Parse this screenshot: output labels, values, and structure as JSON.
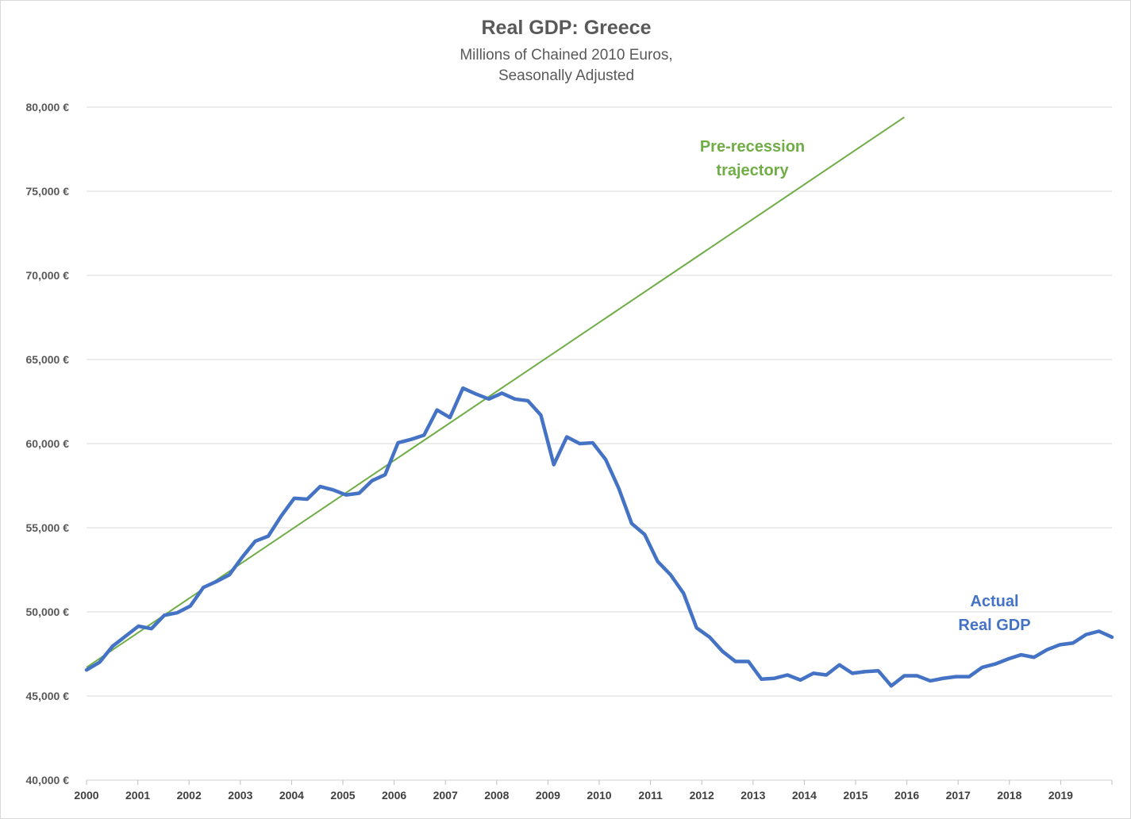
{
  "chart_data": {
    "type": "line",
    "title": "Real GDP: Greece",
    "subtitle": [
      "Millions of Chained 2010 Euros,",
      "Seasonally Adjusted"
    ],
    "ylim": [
      40000,
      80000
    ],
    "yticks": [
      40000,
      45000,
      50000,
      55000,
      60000,
      65000,
      70000,
      75000,
      80000
    ],
    "ytick_labels": [
      "40,000 €",
      "45,000 €",
      "50,000 €",
      "55,000 €",
      "60,000 €",
      "65,000 €",
      "70,000 €",
      "75,000 €",
      "80,000 €"
    ],
    "xticks": [
      "2000",
      "2001",
      "2002",
      "2003",
      "2004",
      "2005",
      "2006",
      "2007",
      "2008",
      "2009",
      "2010",
      "2011",
      "2012",
      "2013",
      "2014",
      "2015",
      "2016",
      "2017",
      "2018",
      "2019"
    ],
    "grid": true,
    "legend": "none",
    "series": [
      {
        "color": "#4472c4",
        "frequency": "quarterly",
        "start": "2000-Q1",
        "values": [
          46550,
          47000,
          47950,
          48550,
          49150,
          49000,
          49800,
          49950,
          50350,
          51450,
          51800,
          52200,
          53250,
          54200,
          54500,
          55700,
          56750,
          56700,
          57450,
          57250,
          56950,
          57050,
          57800,
          58150,
          60050,
          60250,
          60500,
          62000,
          61550,
          63300,
          62950,
          62650,
          63000,
          62650,
          62550,
          61700,
          58750,
          60400,
          60000,
          60050,
          59050,
          57350,
          55250,
          54600,
          53000,
          52200,
          51100,
          49050,
          48500,
          47650,
          47050,
          47050,
          46000,
          46050,
          46250,
          45950,
          46350,
          46250,
          46850,
          46350,
          46450,
          46500,
          45600,
          46200,
          46200,
          45900,
          46050,
          46150,
          46150,
          46700,
          46900,
          47200,
          47450,
          47300,
          47750,
          48050,
          48150,
          48650,
          48850,
          48500
        ]
      },
      {
        "color": "#70ad47",
        "type": "trend",
        "points": [
          {
            "x": 2000.0,
            "y": 46700
          },
          {
            "x": 2015.95,
            "y": 79400
          }
        ]
      }
    ],
    "annotations": [
      {
        "lines": [
          "Pre-recession",
          "trajectory"
        ],
        "color": "#70ad47"
      },
      {
        "lines": [
          "Actual",
          "Real GDP"
        ],
        "color": "#4472c4"
      }
    ]
  }
}
